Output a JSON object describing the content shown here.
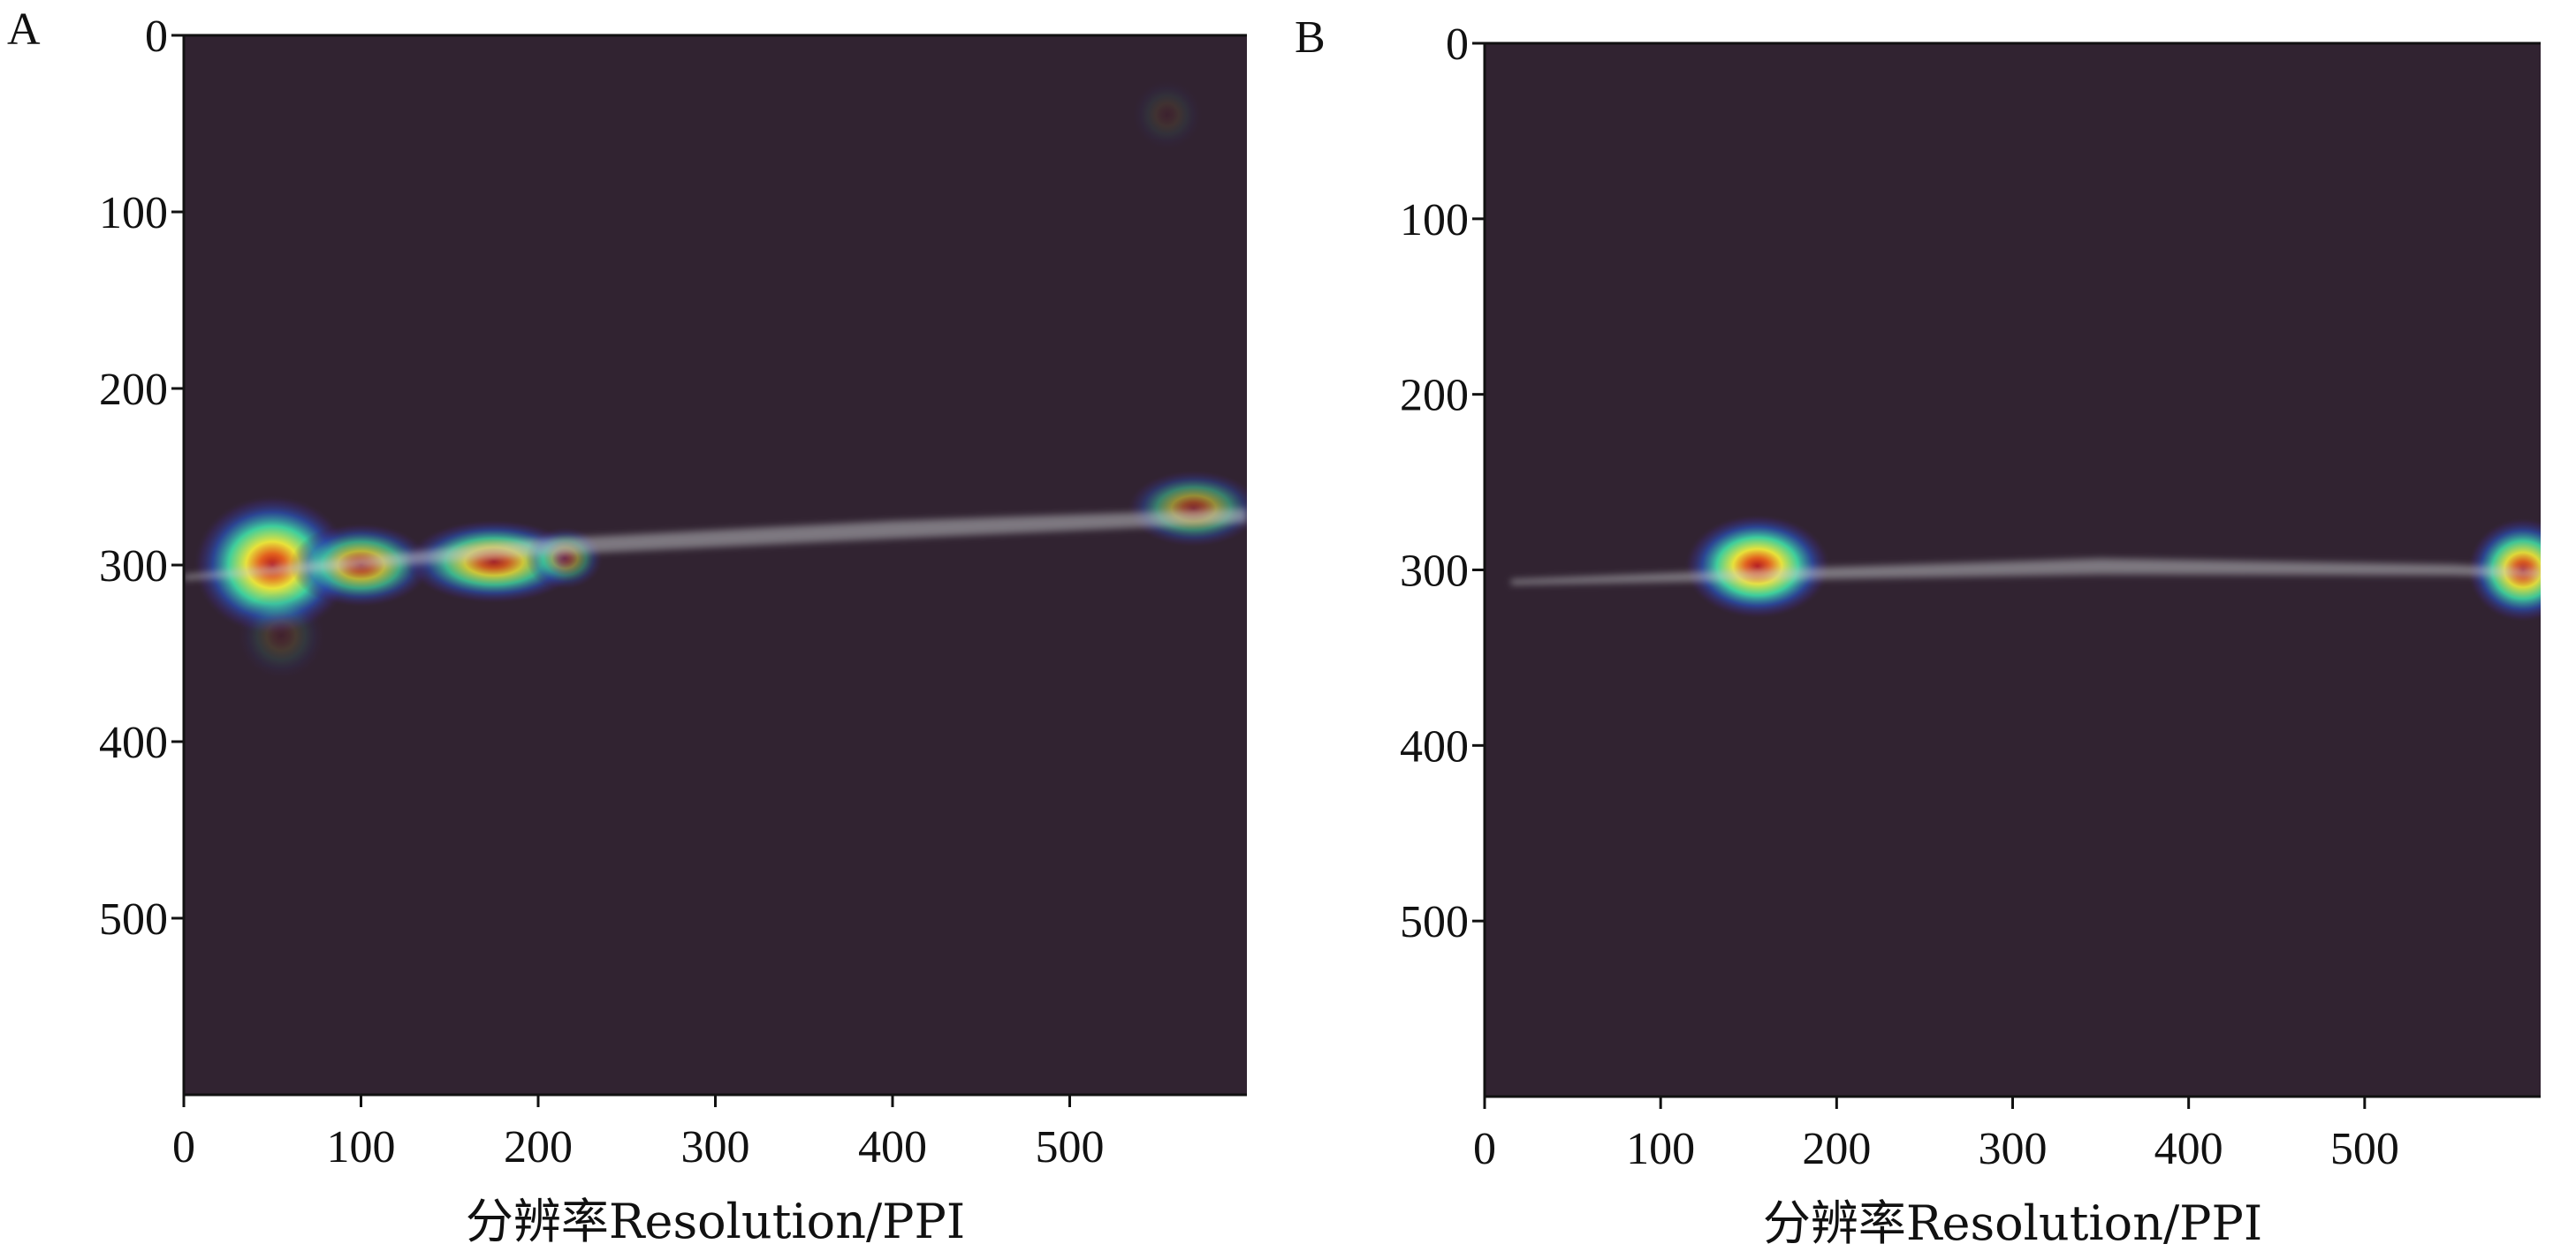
{
  "chart_data": [
    {
      "type": "heatmap",
      "panel": "A",
      "title": "",
      "xlabel": "分辨率Resolution/PPI",
      "ylabel": "",
      "xlim": [
        0,
        600
      ],
      "ylim": [
        600,
        0
      ],
      "x_ticks": [
        0,
        100,
        200,
        300,
        400,
        500
      ],
      "y_ticks": [
        0,
        100,
        200,
        300,
        400,
        500
      ],
      "grid": false,
      "background_color": "#312331",
      "hotspots": [
        {
          "x": 50,
          "y": 300,
          "rx": 45,
          "ry": 40,
          "intensity": 1.0
        },
        {
          "x": 100,
          "y": 300,
          "rx": 40,
          "ry": 24,
          "intensity": 0.75
        },
        {
          "x": 175,
          "y": 298,
          "rx": 50,
          "ry": 24,
          "intensity": 0.85
        },
        {
          "x": 215,
          "y": 296,
          "rx": 22,
          "ry": 18,
          "intensity": 0.45
        },
        {
          "x": 55,
          "y": 340,
          "rx": 25,
          "ry": 25,
          "intensity": 0.12
        },
        {
          "x": 570,
          "y": 268,
          "rx": 38,
          "ry": 22,
          "intensity": 0.55
        },
        {
          "x": 555,
          "y": 45,
          "rx": 20,
          "ry": 20,
          "intensity": 0.08
        }
      ],
      "trace": {
        "x": [
          0,
          50,
          200,
          400,
          600
        ],
        "y": [
          307,
          303,
          290,
          280,
          272
        ],
        "width": [
          3,
          5,
          9,
          10,
          8
        ]
      }
    },
    {
      "type": "heatmap",
      "panel": "B",
      "title": "",
      "xlabel": "分辨率Resolution/PPI",
      "ylabel": "",
      "xlim": [
        0,
        600
      ],
      "ylim": [
        600,
        0
      ],
      "x_ticks": [
        0,
        100,
        200,
        300,
        400,
        500
      ],
      "y_ticks": [
        0,
        100,
        200,
        300,
        400,
        500
      ],
      "grid": false,
      "background_color": "#312331",
      "hotspots": [
        {
          "x": 155,
          "y": 298,
          "rx": 42,
          "ry": 30,
          "intensity": 1.0
        },
        {
          "x": 590,
          "y": 300,
          "rx": 32,
          "ry": 30,
          "intensity": 0.95
        }
      ],
      "trace": {
        "x": [
          15,
          150,
          350,
          550,
          600
        ],
        "y": [
          307,
          303,
          298,
          300,
          302
        ],
        "width": [
          3,
          6,
          9,
          6,
          5
        ]
      }
    }
  ]
}
